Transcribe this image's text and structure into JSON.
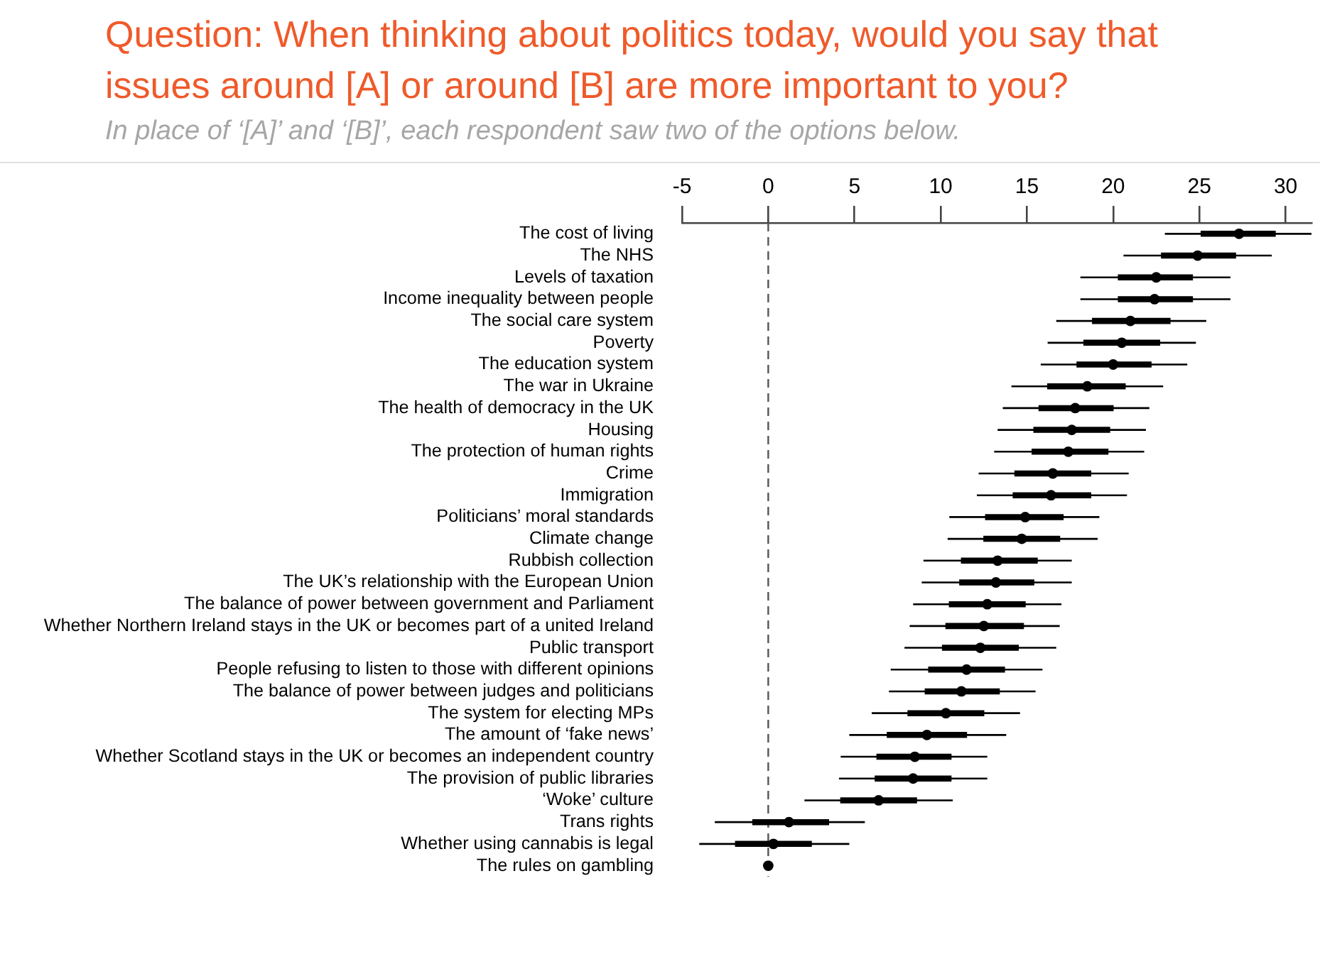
{
  "chart_data": {
    "type": "box",
    "orientation": "horizontal",
    "title": "Question: When thinking about politics today, would you say that issues around [A] or around [B] are more important to you?",
    "subtitle": "In place of ‘[A]’ and ‘[B]’, each respondent saw two of the options below.",
    "categories": [
      "The cost of living",
      "The NHS",
      "Levels of taxation",
      "Income inequality between people",
      "The social care system",
      "Poverty",
      "The education system",
      "The war in Ukraine",
      "The health of democracy in the UK",
      "Housing",
      "The protection of human rights",
      "Crime",
      "Immigration",
      "Politicians’ moral standards",
      "Climate change",
      "Rubbish collection",
      "The UK’s relationship with the European Union",
      "The balance of power between government and Parliament",
      "Whether Northern Ireland stays in the UK or becomes part of a united Ireland",
      "Public transport",
      "People refusing to listen to those with different opinions",
      "The balance of power between judges and politicians",
      "The system for electing MPs",
      "The amount of ‘fake news’",
      "Whether Scotland stays in the UK or becomes an independent country",
      "The provision of public libraries",
      "‘Woke’ culture",
      "Trans rights",
      "Whether using cannabis is legal",
      "The rules on gambling"
    ],
    "color": "#000000",
    "marker": "circle",
    "boxes": [
      {
        "low": 23.0,
        "q1": 25.1,
        "median": 27.3,
        "q3": 29.4,
        "high": 31.5
      },
      {
        "low": 20.6,
        "q1": 22.8,
        "median": 24.9,
        "q3": 27.1,
        "high": 29.2
      },
      {
        "low": 18.1,
        "q1": 20.3,
        "median": 22.5,
        "q3": 24.6,
        "high": 26.8
      },
      {
        "low": 18.1,
        "q1": 20.3,
        "median": 22.4,
        "q3": 24.6,
        "high": 26.8
      },
      {
        "low": 16.7,
        "q1": 18.8,
        "median": 21.0,
        "q3": 23.3,
        "high": 25.4
      },
      {
        "low": 16.2,
        "q1": 18.3,
        "median": 20.5,
        "q3": 22.7,
        "high": 24.8
      },
      {
        "low": 15.8,
        "q1": 17.9,
        "median": 20.0,
        "q3": 22.2,
        "high": 24.3
      },
      {
        "low": 14.1,
        "q1": 16.2,
        "median": 18.5,
        "q3": 20.7,
        "high": 22.9
      },
      {
        "low": 13.6,
        "q1": 15.7,
        "median": 17.8,
        "q3": 20.0,
        "high": 22.1
      },
      {
        "low": 13.3,
        "q1": 15.4,
        "median": 17.6,
        "q3": 19.8,
        "high": 21.9
      },
      {
        "low": 13.1,
        "q1": 15.3,
        "median": 17.4,
        "q3": 19.7,
        "high": 21.8
      },
      {
        "low": 12.2,
        "q1": 14.3,
        "median": 16.5,
        "q3": 18.7,
        "high": 20.9
      },
      {
        "low": 12.1,
        "q1": 14.2,
        "median": 16.4,
        "q3": 18.7,
        "high": 20.8
      },
      {
        "low": 10.5,
        "q1": 12.6,
        "median": 14.9,
        "q3": 17.1,
        "high": 19.2
      },
      {
        "low": 10.4,
        "q1": 12.5,
        "median": 14.7,
        "q3": 16.9,
        "high": 19.1
      },
      {
        "low": 9.0,
        "q1": 11.2,
        "median": 13.3,
        "q3": 15.6,
        "high": 17.6
      },
      {
        "low": 8.9,
        "q1": 11.1,
        "median": 13.2,
        "q3": 15.4,
        "high": 17.6
      },
      {
        "low": 8.4,
        "q1": 10.5,
        "median": 12.7,
        "q3": 14.9,
        "high": 17.0
      },
      {
        "low": 8.2,
        "q1": 10.3,
        "median": 12.5,
        "q3": 14.8,
        "high": 16.9
      },
      {
        "low": 7.9,
        "q1": 10.1,
        "median": 12.3,
        "q3": 14.5,
        "high": 16.7
      },
      {
        "low": 7.1,
        "q1": 9.3,
        "median": 11.5,
        "q3": 13.7,
        "high": 15.9
      },
      {
        "low": 7.0,
        "q1": 9.1,
        "median": 11.2,
        "q3": 13.4,
        "high": 15.5
      },
      {
        "low": 6.0,
        "q1": 8.1,
        "median": 10.3,
        "q3": 12.5,
        "high": 14.6
      },
      {
        "low": 4.7,
        "q1": 6.9,
        "median": 9.2,
        "q3": 11.5,
        "high": 13.8
      },
      {
        "low": 4.2,
        "q1": 6.3,
        "median": 8.5,
        "q3": 10.6,
        "high": 12.7
      },
      {
        "low": 4.1,
        "q1": 6.2,
        "median": 8.4,
        "q3": 10.6,
        "high": 12.7
      },
      {
        "low": 2.1,
        "q1": 4.2,
        "median": 6.4,
        "q3": 8.6,
        "high": 10.7
      },
      {
        "low": -3.1,
        "q1": -0.9,
        "median": 1.2,
        "q3": 3.5,
        "high": 5.6
      },
      {
        "low": -4.0,
        "q1": -1.9,
        "median": 0.3,
        "q3": 2.5,
        "high": 4.7
      },
      null
    ],
    "series": [
      {
        "type": "scatter",
        "color": "#000000",
        "x": [
          "The rules on gambling"
        ],
        "values": [
          0
        ]
      }
    ],
    "xlim": [
      -5,
      31.5
    ],
    "xticks": [
      -5,
      0,
      5,
      10,
      15,
      20,
      25,
      30
    ],
    "ref_lines": [
      {
        "axis": "x",
        "value": 0,
        "line_style": "dashed",
        "color": "#555555"
      }
    ],
    "grid": false,
    "legend": false
  }
}
